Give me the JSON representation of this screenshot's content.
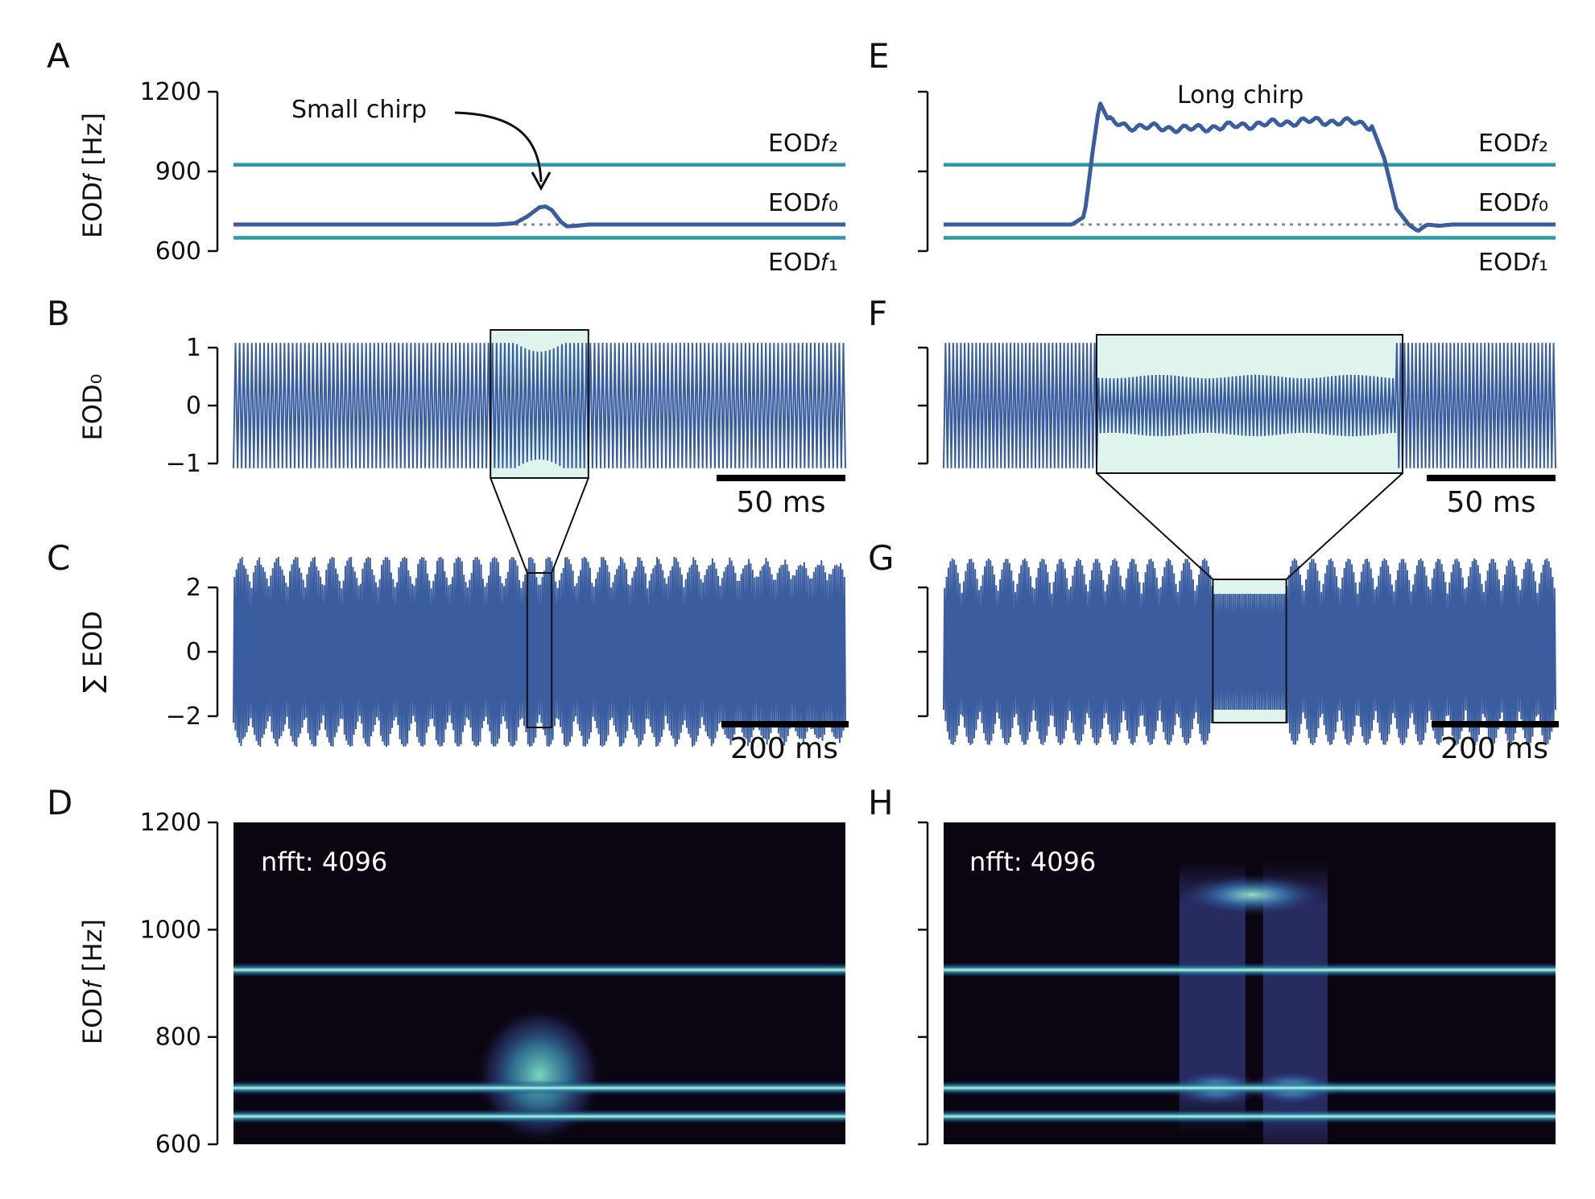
{
  "chart_data": [
    {
      "panel": "A",
      "type": "line",
      "ylabel": "EOD𝑓 [Hz]",
      "ylim": [
        600,
        1200
      ],
      "yticks": [
        600,
        900,
        1200
      ],
      "annotation": "Small chirp",
      "baseline_labels": [
        "EOD𝑓₂",
        "EOD𝑓₀",
        "EOD𝑓₁"
      ],
      "series": [
        {
          "name": "EOD𝑓₂",
          "values": [
            [
              0,
              925
            ],
            [
              1,
              925
            ]
          ]
        },
        {
          "name": "EOD𝑓₁",
          "values": [
            [
              0,
              650
            ],
            [
              1,
              650
            ]
          ]
        },
        {
          "name": "EOD𝑓₀",
          "values": [
            [
              0,
              700
            ],
            [
              0.43,
              700
            ],
            [
              0.46,
              705
            ],
            [
              0.48,
              730
            ],
            [
              0.5,
              765
            ],
            [
              0.51,
              768
            ],
            [
              0.52,
              755
            ],
            [
              0.535,
              710
            ],
            [
              0.545,
              693
            ],
            [
              0.56,
              695
            ],
            [
              0.58,
              700
            ],
            [
              1,
              700
            ]
          ]
        }
      ]
    },
    {
      "panel": "B",
      "type": "line",
      "ylabel": "EOD₀",
      "ylim": [
        -1,
        1
      ],
      "yticks": [
        -1,
        0,
        1
      ],
      "scalebar": "50 ms",
      "zoom_window": [
        0.42,
        0.58
      ]
    },
    {
      "panel": "C",
      "type": "line",
      "ylabel": "∑ EOD",
      "ylim": [
        -2,
        2
      ],
      "yticks": [
        -2,
        0,
        2
      ],
      "scalebar": "200 ms",
      "zoom_window": [
        0.48,
        0.52
      ]
    },
    {
      "panel": "D",
      "type": "heatmap",
      "ylabel": "EOD𝑓 [Hz]",
      "ylim": [
        600,
        1200
      ],
      "yticks": [
        600,
        800,
        1000,
        1200
      ],
      "annotation": "nfft: 4096",
      "lines_hz": [
        925,
        705,
        652
      ],
      "chirp_blob": {
        "x_center": 0.5,
        "f_center_hz": 730,
        "f_spread_hz": 60
      }
    },
    {
      "panel": "E",
      "type": "line",
      "ylim": [
        600,
        1200
      ],
      "annotation": "Long chirp",
      "baseline_labels": [
        "EOD𝑓₂",
        "EOD𝑓₀",
        "EOD𝑓₁"
      ],
      "series": [
        {
          "name": "EOD𝑓₂",
          "values": [
            [
              0,
              925
            ],
            [
              1,
              925
            ]
          ]
        },
        {
          "name": "EOD𝑓₁",
          "values": [
            [
              0,
              650
            ],
            [
              1,
              650
            ]
          ]
        },
        {
          "name": "EOD𝑓₀",
          "values": [
            [
              0,
              700
            ],
            [
              0.21,
              700
            ],
            [
              0.23,
              730
            ],
            [
              0.245,
              1000
            ],
            [
              0.255,
              1160
            ],
            [
              0.27,
              1090
            ],
            [
              0.3,
              1070
            ],
            [
              0.4,
              1060
            ],
            [
              0.5,
              1075
            ],
            [
              0.6,
              1090
            ],
            [
              0.67,
              1085
            ],
            [
              0.7,
              1070
            ],
            [
              0.72,
              950
            ],
            [
              0.74,
              760
            ],
            [
              0.76,
              700
            ],
            [
              0.775,
              675
            ],
            [
              0.79,
              700
            ],
            [
              0.81,
              695
            ],
            [
              0.83,
              700
            ],
            [
              1,
              700
            ]
          ]
        }
      ]
    },
    {
      "panel": "F",
      "type": "line",
      "ylim": [
        -1,
        1
      ],
      "scalebar": "50 ms",
      "zoom_window": [
        0.25,
        0.75
      ]
    },
    {
      "panel": "G",
      "type": "line",
      "ylim": [
        -2,
        2
      ],
      "scalebar": "200 ms",
      "zoom_window": [
        0.44,
        0.56
      ]
    },
    {
      "panel": "H",
      "type": "heatmap",
      "ylim": [
        600,
        1200
      ],
      "annotation": "nfft: 4096",
      "lines_hz": [
        925,
        705,
        652
      ],
      "chirp_window": [
        0.38,
        0.63
      ]
    }
  ],
  "colors": {
    "signal": "#3a5da0",
    "baseline": "#2a9aa6",
    "zoom_fill": "#e0f4ee",
    "spectrogram_bg": "#0a0510",
    "dotted": "#888888"
  }
}
